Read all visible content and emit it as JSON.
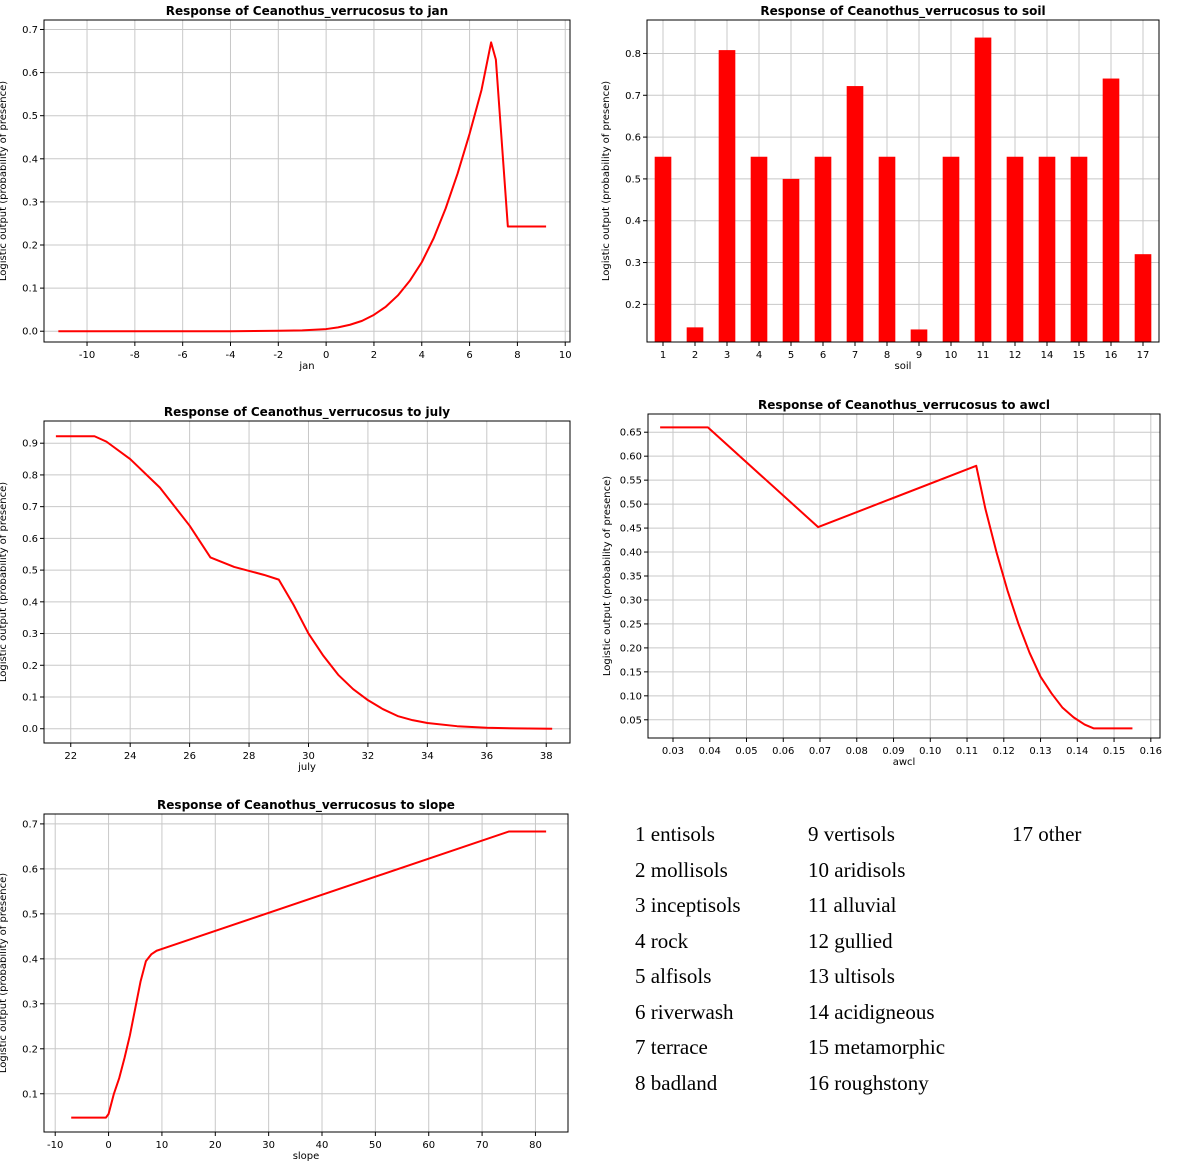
{
  "chart_data": [
    {
      "id": "jan",
      "type": "line",
      "title": "Response of Ceanothus_verrucosus to jan",
      "xlabel": "jan",
      "ylabel": "Logistic output (probability of presence)",
      "xlim": [
        -11.8,
        10.2
      ],
      "ylim": [
        -0.025,
        0.722
      ],
      "xticks": [
        -12,
        -10,
        -8,
        -6,
        -4,
        -2,
        0,
        2,
        4,
        6,
        8,
        10
      ],
      "xtick_labels": [
        "-12",
        "-10",
        "-8",
        "-6",
        "-4",
        "-2",
        "0",
        "2",
        "4",
        "6",
        "8",
        "10"
      ],
      "yticks": [
        0.0,
        0.1,
        0.2,
        0.3,
        0.4,
        0.5,
        0.6,
        0.7
      ],
      "ytick_labels": [
        "0.0",
        "0.1",
        "0.2",
        "0.3",
        "0.4",
        "0.5",
        "0.6",
        "0.7"
      ],
      "grid": true,
      "series": [
        {
          "color": "#ff0000",
          "x": [
            -11.2,
            -8,
            -6,
            -4,
            -3,
            -2,
            -1,
            0,
            0.5,
            1,
            1.5,
            2,
            2.5,
            3,
            3.5,
            4,
            4.5,
            5,
            5.5,
            6,
            6.5,
            6.9,
            7.1,
            7.6,
            8.5,
            9.2
          ],
          "y": [
            0.0,
            0.0,
            0.0,
            0.0,
            0.0005,
            0.001,
            0.002,
            0.005,
            0.009,
            0.015,
            0.024,
            0.038,
            0.057,
            0.083,
            0.117,
            0.16,
            0.216,
            0.285,
            0.366,
            0.458,
            0.56,
            0.67,
            0.63,
            0.243,
            0.243,
            0.243
          ]
        }
      ]
    },
    {
      "id": "soil",
      "type": "bar",
      "title": "Response of Ceanothus_verrucosus to soil",
      "xlabel": "soil",
      "ylabel": "Logistic output (probability of presence)",
      "categories": [
        "1",
        "2",
        "3",
        "4",
        "5",
        "6",
        "7",
        "8",
        "9",
        "10",
        "11",
        "12",
        "14",
        "15",
        "16",
        "17"
      ],
      "values": [
        0.553,
        0.145,
        0.808,
        0.553,
        0.5,
        0.553,
        0.722,
        0.553,
        0.14,
        0.553,
        0.838,
        0.553,
        0.553,
        0.553,
        0.74,
        0.32
      ],
      "ylim": [
        0.11,
        0.88
      ],
      "yticks": [
        0.2,
        0.3,
        0.4,
        0.5,
        0.6,
        0.7,
        0.8
      ],
      "ytick_labels": [
        "0.2",
        "0.3",
        "0.4",
        "0.5",
        "0.6",
        "0.7",
        "0.8"
      ],
      "grid": true,
      "color": "#ff0000"
    },
    {
      "id": "july",
      "type": "line",
      "title": "Response of Ceanothus_verrucosus to july",
      "xlabel": "july",
      "ylabel": "Logistic output (probability of presence)",
      "xlim": [
        21.1,
        38.8
      ],
      "ylim": [
        -0.045,
        0.97
      ],
      "xticks": [
        22,
        24,
        26,
        28,
        30,
        32,
        34,
        36,
        38
      ],
      "xtick_labels": [
        "22",
        "24",
        "26",
        "28",
        "30",
        "32",
        "34",
        "36",
        "38"
      ],
      "yticks": [
        0.0,
        0.1,
        0.2,
        0.3,
        0.4,
        0.5,
        0.6,
        0.7,
        0.8,
        0.9
      ],
      "ytick_labels": [
        "0.0",
        "0.1",
        "0.2",
        "0.3",
        "0.4",
        "0.5",
        "0.6",
        "0.7",
        "0.8",
        "0.9"
      ],
      "grid": true,
      "series": [
        {
          "color": "#ff0000",
          "x": [
            21.5,
            22.8,
            23.2,
            24,
            25,
            26,
            26.7,
            27.5,
            28.5,
            29,
            29.5,
            30,
            30.5,
            31,
            31.5,
            32,
            32.5,
            33,
            33.5,
            34,
            35,
            36,
            37,
            38.2
          ],
          "y": [
            0.922,
            0.922,
            0.905,
            0.85,
            0.76,
            0.64,
            0.54,
            0.51,
            0.485,
            0.47,
            0.39,
            0.3,
            0.23,
            0.17,
            0.125,
            0.09,
            0.062,
            0.04,
            0.027,
            0.018,
            0.008,
            0.003,
            0.001,
            0.0
          ]
        }
      ]
    },
    {
      "id": "awcl",
      "type": "line",
      "title": "Response of Ceanothus_verrucosus to awcl",
      "xlabel": "awcl",
      "ylabel": "Logistic output (probability of presence)",
      "xlim": [
        0.0232,
        0.1625
      ],
      "ylim": [
        0.012,
        0.688
      ],
      "xticks": [
        0.03,
        0.04,
        0.05,
        0.06,
        0.07,
        0.08,
        0.09,
        0.1,
        0.11,
        0.12,
        0.13,
        0.14,
        0.15,
        0.16
      ],
      "xtick_labels": [
        "0.03",
        "0.04",
        "0.05",
        "0.06",
        "0.07",
        "0.08",
        "0.09",
        "0.10",
        "0.11",
        "0.12",
        "0.13",
        "0.14",
        "0.15",
        "0.16"
      ],
      "yticks": [
        0.05,
        0.1,
        0.15,
        0.2,
        0.25,
        0.3,
        0.35,
        0.4,
        0.45,
        0.5,
        0.55,
        0.6,
        0.65
      ],
      "ytick_labels": [
        "0.05",
        "0.10",
        "0.15",
        "0.20",
        "0.25",
        "0.30",
        "0.35",
        "0.40",
        "0.45",
        "0.50",
        "0.55",
        "0.60",
        "0.65"
      ],
      "grid": true,
      "series": [
        {
          "color": "#ff0000",
          "x": [
            0.0265,
            0.0395,
            0.0695,
            0.1125,
            0.115,
            0.118,
            0.121,
            0.124,
            0.127,
            0.13,
            0.133,
            0.136,
            0.139,
            0.142,
            0.1445,
            0.155
          ],
          "y": [
            0.66,
            0.66,
            0.452,
            0.58,
            0.49,
            0.4,
            0.32,
            0.25,
            0.19,
            0.14,
            0.105,
            0.075,
            0.055,
            0.04,
            0.032,
            0.032
          ]
        }
      ]
    },
    {
      "id": "slope",
      "type": "line",
      "title": "Response of Ceanothus_verrucosus to slope",
      "xlabel": "slope",
      "ylabel": "Logistic output (probability of presence)",
      "xlim": [
        -12.1,
        86.1
      ],
      "ylim": [
        0.015,
        0.722
      ],
      "xticks": [
        -10,
        0,
        10,
        20,
        30,
        40,
        50,
        60,
        70,
        80
      ],
      "xtick_labels": [
        "-10",
        "0",
        "10",
        "20",
        "30",
        "40",
        "50",
        "60",
        "70",
        "80"
      ],
      "yticks": [
        0.1,
        0.2,
        0.3,
        0.4,
        0.5,
        0.6,
        0.7
      ],
      "ytick_labels": [
        "0.1",
        "0.2",
        "0.3",
        "0.4",
        "0.5",
        "0.6",
        "0.7"
      ],
      "grid": true,
      "series": [
        {
          "color": "#ff0000",
          "x": [
            -7,
            -0.5,
            0,
            1,
            2,
            3,
            4,
            5,
            6,
            7,
            8,
            9,
            10,
            75,
            82
          ],
          "y": [
            0.047,
            0.047,
            0.055,
            0.1,
            0.135,
            0.18,
            0.23,
            0.29,
            0.35,
            0.395,
            0.41,
            0.418,
            0.422,
            0.683,
            0.683
          ]
        }
      ]
    }
  ],
  "soil_legend": {
    "columns": [
      [
        "1 entisols",
        "2 mollisols",
        "3 inceptisols",
        "4 rock",
        "5 alfisols",
        "6 riverwash",
        "7 terrace",
        "8 badland"
      ],
      [
        "9 vertisols",
        "10 aridisols",
        "11 alluvial",
        "12 gullied",
        "13 ultisols",
        "14 acidigneous",
        "15 metamorphic",
        "16 roughstony"
      ],
      [
        "17 other"
      ]
    ]
  }
}
